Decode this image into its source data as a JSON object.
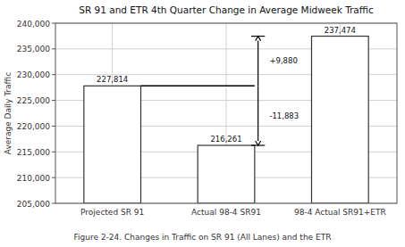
{
  "chart_data": {
    "type": "bar",
    "title": "SR 91 and ETR 4th Quarter Change in Average Midweek Traffic",
    "categories": [
      "Projected SR 91",
      "Actual 98-4 SR91",
      "98-4 Actual SR91+ETR"
    ],
    "values": [
      227814,
      216261,
      237474
    ],
    "value_labels": [
      "227,814",
      "216,261",
      "237,474"
    ],
    "data_labels": true,
    "color": "#ffffff",
    "ylabel": "Average Daily Traffic",
    "ylim": [
      205000,
      240000
    ],
    "yticks": [
      {
        "value": 205000,
        "label": "205,000"
      },
      {
        "value": 210000,
        "label": "210,000"
      },
      {
        "value": 215000,
        "label": "215,000"
      },
      {
        "value": 220000,
        "label": "220,000"
      },
      {
        "value": 225000,
        "label": "225,000"
      },
      {
        "value": 230000,
        "label": "230,000"
      },
      {
        "value": 235000,
        "label": "235,000"
      },
      {
        "value": 240000,
        "label": "240,000"
      }
    ],
    "grid": true,
    "annotations": [
      {
        "text": "+9,880"
      },
      {
        "text": "-11,883"
      }
    ],
    "caption": "Figure 2-24. Changes in Traffic on SR 91 (All Lanes) and the ETR"
  }
}
